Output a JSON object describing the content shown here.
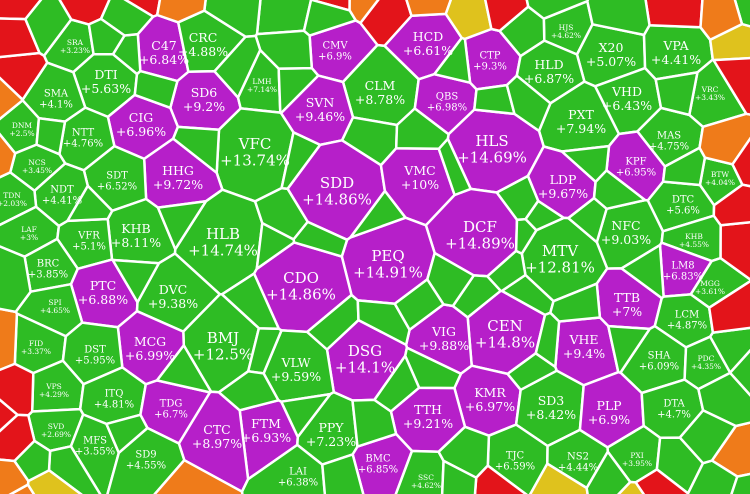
{
  "colors": {
    "purple": "#b61fc9",
    "green": "#2ebc24",
    "red": "#e3141a",
    "orange": "#ef7b1a",
    "yellow": "#dfc21d",
    "border": "#ffffff"
  },
  "chart_data": {
    "type": "voronoi-treemap",
    "cells": [
      {
        "code": "C47",
        "value": "+6.84%",
        "color": "purple"
      },
      {
        "code": "CRC",
        "value": "+4.88%",
        "color": "green"
      },
      {
        "code": "CMV",
        "value": "+6.9%",
        "color": "purple"
      },
      {
        "code": "HCD",
        "value": "+6.61%",
        "color": "purple"
      },
      {
        "code": "CTP",
        "value": "+9.3%",
        "color": "purple"
      },
      {
        "code": "HJS",
        "value": "+4.62%",
        "color": "green"
      },
      {
        "code": "X20",
        "value": "+5.07%",
        "color": "green"
      },
      {
        "code": "VPA",
        "value": "+4.41%",
        "color": "green"
      },
      {
        "code": "SRA",
        "value": "+3.23%",
        "color": "green"
      },
      {
        "code": "DTI",
        "value": "+5.63%",
        "color": "green"
      },
      {
        "code": "SD6",
        "value": "+9.2%",
        "color": "purple"
      },
      {
        "code": "LMH",
        "value": "+7.14%",
        "color": "green"
      },
      {
        "code": "CLM",
        "value": "+8.78%",
        "color": "green"
      },
      {
        "code": "HLD",
        "value": "+6.87%",
        "color": "green"
      },
      {
        "code": "VHD",
        "value": "+6.43%",
        "color": "green"
      },
      {
        "code": "VRC",
        "value": "+3.43%",
        "color": "green"
      },
      {
        "code": "SMA",
        "value": "+4.1%",
        "color": "green"
      },
      {
        "code": "SVN",
        "value": "+9.46%",
        "color": "purple"
      },
      {
        "code": "QBS",
        "value": "+6.98%",
        "color": "purple"
      },
      {
        "code": "CIG",
        "value": "+6.96%",
        "color": "purple"
      },
      {
        "code": "PXT",
        "value": "+7.94%",
        "color": "green"
      },
      {
        "code": "NTT",
        "value": "+4.76%",
        "color": "green"
      },
      {
        "code": "HLS",
        "value": "+14.69%",
        "color": "purple"
      },
      {
        "code": "MAS",
        "value": "+4.75%",
        "color": "green"
      },
      {
        "code": "DNM",
        "value": "+2.5%",
        "color": "green"
      },
      {
        "code": "VFC",
        "value": "+13.74%",
        "color": "green"
      },
      {
        "code": "HHG",
        "value": "+9.72%",
        "color": "purple"
      },
      {
        "code": "KPF",
        "value": "+6.95%",
        "color": "purple"
      },
      {
        "code": "NCS",
        "value": "+3.45%",
        "color": "green"
      },
      {
        "code": "SDT",
        "value": "+6.52%",
        "color": "green"
      },
      {
        "code": "SDD",
        "value": "+14.86%",
        "color": "purple"
      },
      {
        "code": "VMC",
        "value": "+10%",
        "color": "purple"
      },
      {
        "code": "LDP",
        "value": "+9.67%",
        "color": "purple"
      },
      {
        "code": "BTW",
        "value": "+4.04%",
        "color": "green"
      },
      {
        "code": "NDT",
        "value": "+4.41%",
        "color": "green"
      },
      {
        "code": "DTC",
        "value": "+5.6%",
        "color": "green"
      },
      {
        "code": "TDN",
        "value": "+2.03%",
        "color": "green"
      },
      {
        "code": "KHB",
        "value": "+8.11%",
        "color": "green"
      },
      {
        "code": "LAF",
        "value": "+3%",
        "color": "green"
      },
      {
        "code": "VFR",
        "value": "+5.1%",
        "color": "green"
      },
      {
        "code": "HLB",
        "value": "+14.74%",
        "color": "green"
      },
      {
        "code": "DCF",
        "value": "+14.89%",
        "color": "purple"
      },
      {
        "code": "NFC",
        "value": "+9.03%",
        "color": "green"
      },
      {
        "code": "KHB",
        "value": "+4.55%",
        "color": "green"
      },
      {
        "code": "BRC",
        "value": "+3.85%",
        "color": "green"
      },
      {
        "code": "PEQ",
        "value": "+14.91%",
        "color": "purple"
      },
      {
        "code": "MTV",
        "value": "+12.81%",
        "color": "green"
      },
      {
        "code": "LM8",
        "value": "+6.83%",
        "color": "purple"
      },
      {
        "code": "PTC",
        "value": "+6.88%",
        "color": "purple"
      },
      {
        "code": "CDO",
        "value": "+14.86%",
        "color": "purple"
      },
      {
        "code": "MGG",
        "value": "+3.61%",
        "color": "green"
      },
      {
        "code": "SPI",
        "value": "+4.65%",
        "color": "green"
      },
      {
        "code": "DVC",
        "value": "+9.38%",
        "color": "green"
      },
      {
        "code": "TTB",
        "value": "+7%",
        "color": "purple"
      },
      {
        "code": "CEN",
        "value": "+14.8%",
        "color": "purple"
      },
      {
        "code": "LCM",
        "value": "+4.87%",
        "color": "green"
      },
      {
        "code": "BMJ",
        "value": "+12.5%",
        "color": "green"
      },
      {
        "code": "MCG",
        "value": "+6.99%",
        "color": "purple"
      },
      {
        "code": "FID",
        "value": "+3.37%",
        "color": "green"
      },
      {
        "code": "DST",
        "value": "+5.95%",
        "color": "green"
      },
      {
        "code": "VIG",
        "value": "+9.88%",
        "color": "purple"
      },
      {
        "code": "VHE",
        "value": "+9.4%",
        "color": "purple"
      },
      {
        "code": "DSG",
        "value": "+14.1%",
        "color": "purple"
      },
      {
        "code": "SHA",
        "value": "+6.09%",
        "color": "green"
      },
      {
        "code": "PDC",
        "value": "+4.35%",
        "color": "green"
      },
      {
        "code": "VPS",
        "value": "+4.29%",
        "color": "green"
      },
      {
        "code": "VLW",
        "value": "+9.59%",
        "color": "green"
      },
      {
        "code": "ITQ",
        "value": "+4.81%",
        "color": "green"
      },
      {
        "code": "TDG",
        "value": "+6.7%",
        "color": "purple"
      },
      {
        "code": "KMR",
        "value": "+6.97%",
        "color": "purple"
      },
      {
        "code": "SD3",
        "value": "+8.42%",
        "color": "green"
      },
      {
        "code": "PLP",
        "value": "+6.9%",
        "color": "purple"
      },
      {
        "code": "DTA",
        "value": "+4.7%",
        "color": "green"
      },
      {
        "code": "SVD",
        "value": "+2.69%",
        "color": "green"
      },
      {
        "code": "FTM",
        "value": "+6.93%",
        "color": "purple"
      },
      {
        "code": "TTH",
        "value": "+9.21%",
        "color": "purple"
      },
      {
        "code": "CTC",
        "value": "+8.97%",
        "color": "purple"
      },
      {
        "code": "PPY",
        "value": "+7.23%",
        "color": "green"
      },
      {
        "code": "MFS",
        "value": "+3.55%",
        "color": "green"
      },
      {
        "code": "SD9",
        "value": "+4.55%",
        "color": "green"
      },
      {
        "code": "BMC",
        "value": "+6.85%",
        "color": "purple"
      },
      {
        "code": "TJC",
        "value": "+6.59%",
        "color": "green"
      },
      {
        "code": "NS2",
        "value": "+4.44%",
        "color": "green"
      },
      {
        "code": "PXI",
        "value": "+3.95%",
        "color": "green"
      },
      {
        "code": "LAI",
        "value": "+6.38%",
        "color": "green"
      },
      {
        "code": "SSC",
        "value": "+4.62%",
        "color": "green"
      }
    ]
  }
}
